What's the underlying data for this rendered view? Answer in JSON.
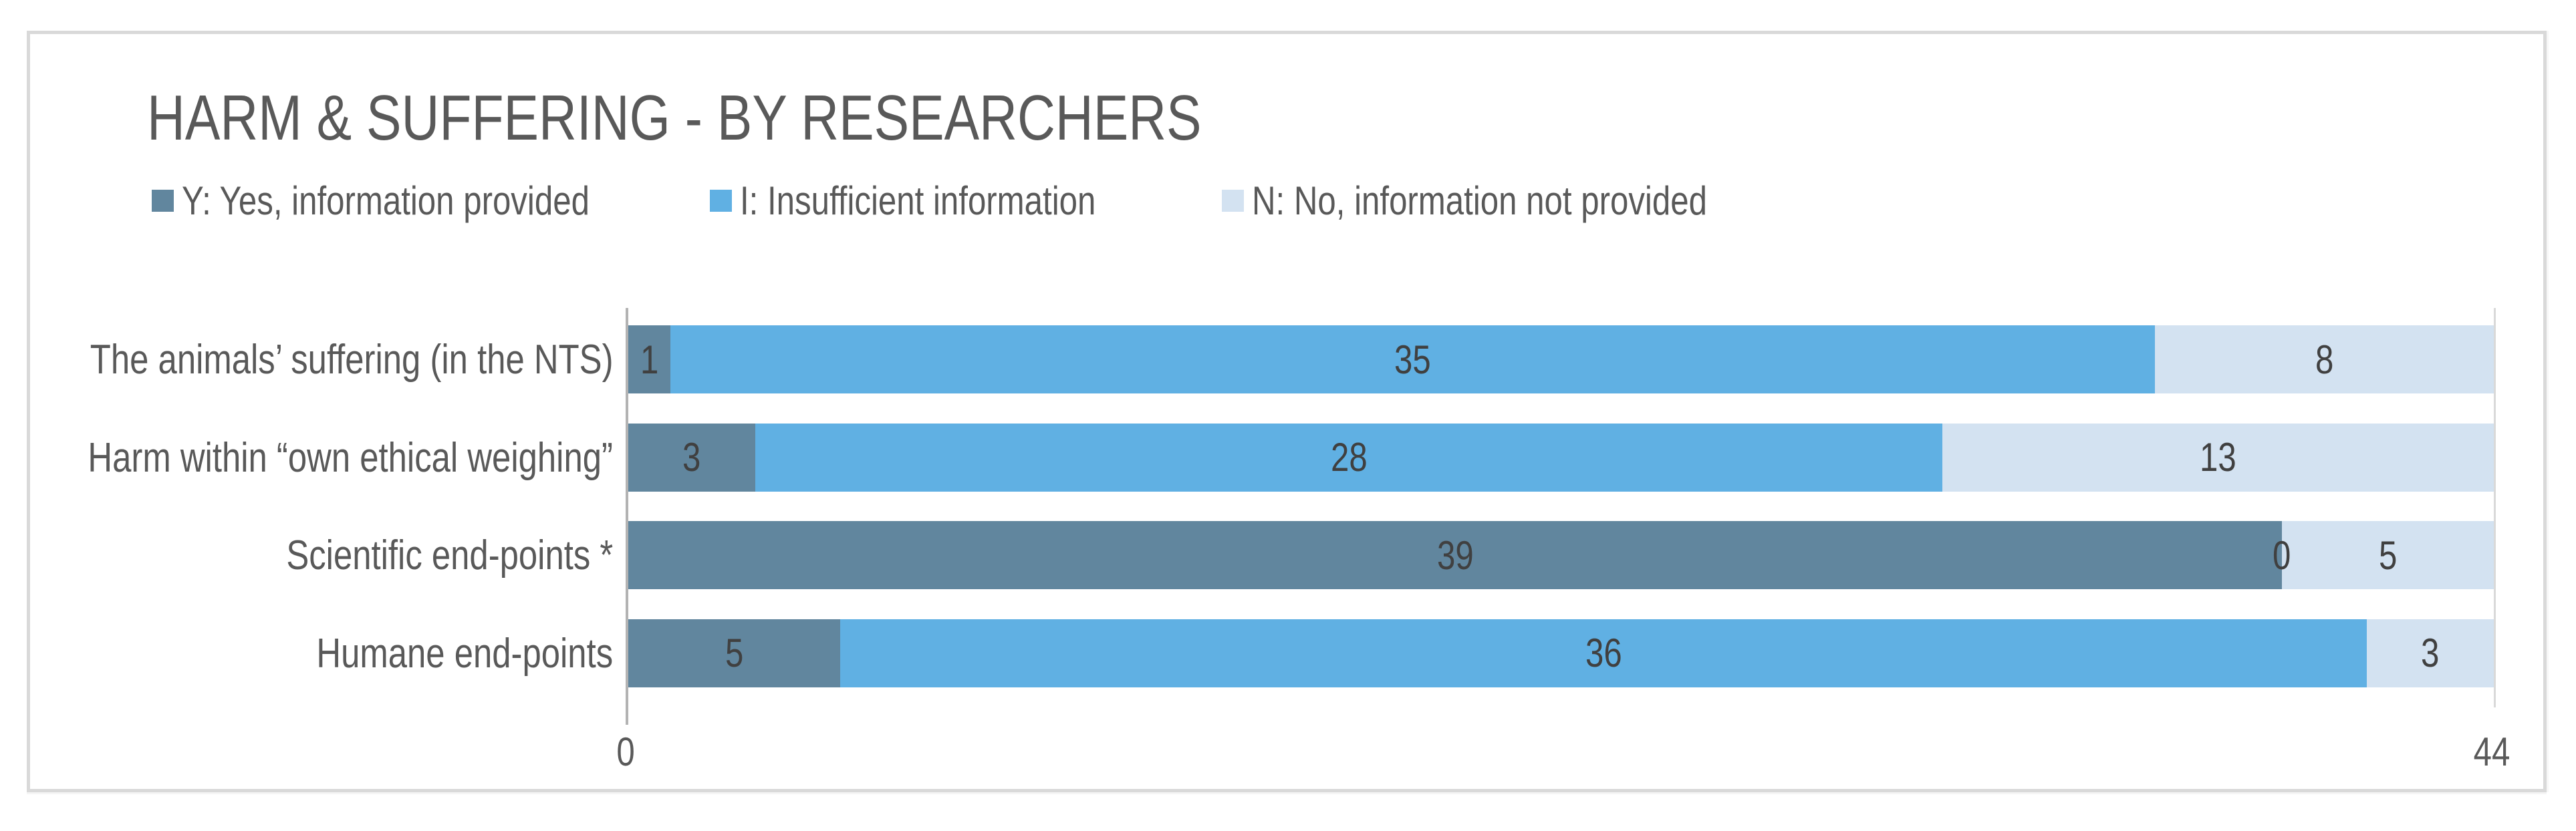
{
  "chart_data": {
    "type": "bar",
    "orientation": "horizontal",
    "stacked": true,
    "title": "HARM & SUFFERING - BY RESEARCHERS",
    "categories": [
      "The animals’ suffering (in the NTS)",
      "Harm within “own ethical weighing”",
      "Scientific end-points *",
      "Humane end-points"
    ],
    "series": [
      {
        "name": "Y: Yes, information provided",
        "color": "#61869e",
        "values": [
          1,
          3,
          39,
          5
        ]
      },
      {
        "name": "I: Insufficient information",
        "color": "#60b0e3",
        "values": [
          35,
          28,
          0,
          36
        ]
      },
      {
        "name": "N: No, information not provided",
        "color": "#d3e2f1",
        "values": [
          8,
          13,
          5,
          3
        ]
      }
    ],
    "xlim": [
      0,
      44
    ],
    "x_tick_labels": [
      "0",
      "44"
    ],
    "data_labels": true,
    "legend_position": "top",
    "grid": "single gridline at x=44; value axis line at x=0",
    "colors": {
      "title_text": "#595959",
      "label_text": "#595959",
      "value_text": "#404040",
      "axis_line": "#b3b3b3",
      "gridline": "#d9d9d9",
      "panel_border": "#d9d9d9"
    }
  }
}
